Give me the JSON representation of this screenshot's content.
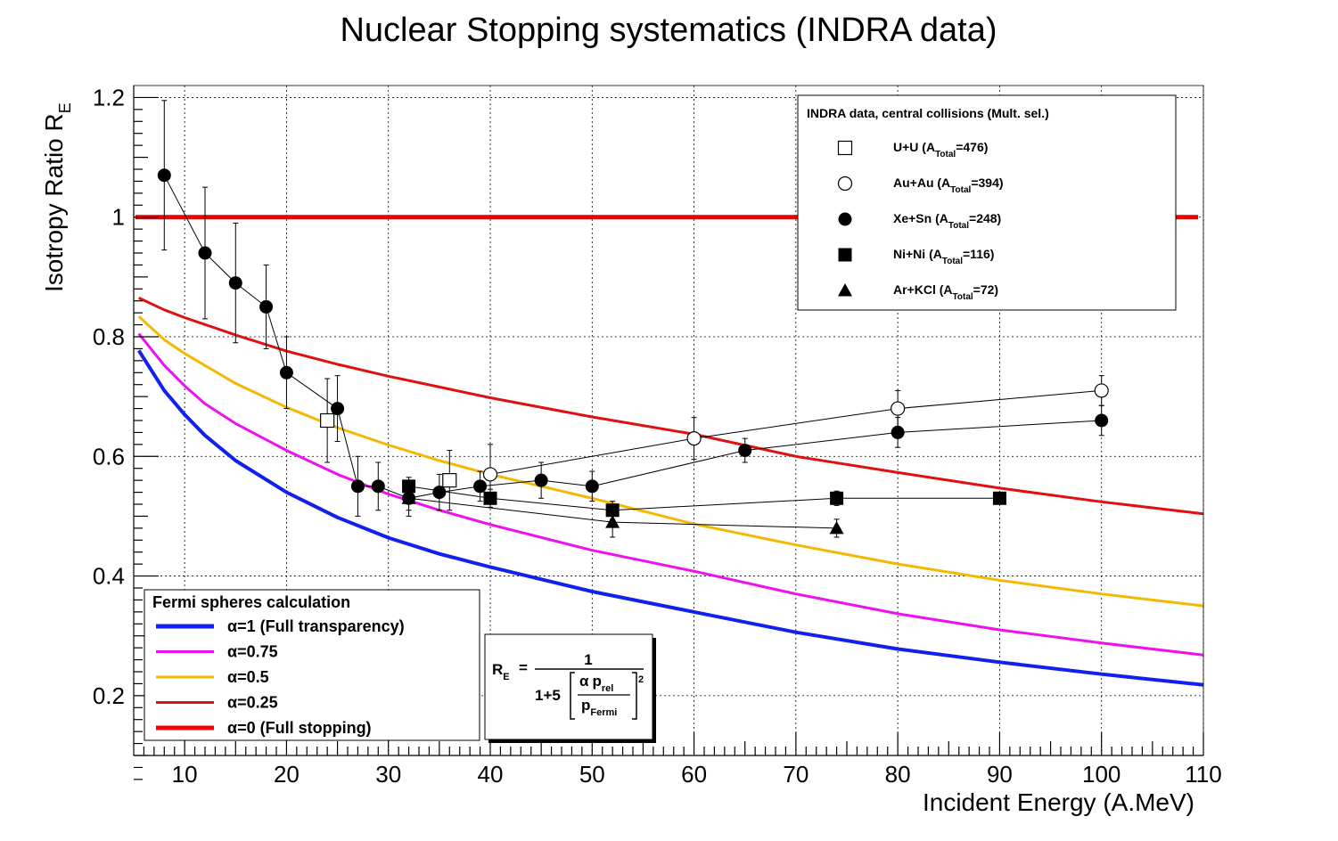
{
  "chart_data": {
    "type": "scatter",
    "title": "Nuclear Stopping systematics (INDRA data)",
    "xlabel": "Incident Energy (A.MeV)",
    "ylabel": "Isotropy Ratio R",
    "ylabel_sub": "E",
    "xlim": [
      5,
      110
    ],
    "ylim": [
      0.1,
      1.22
    ],
    "xticks": [
      10,
      20,
      30,
      40,
      50,
      60,
      70,
      80,
      90,
      100,
      110
    ],
    "xtick_labels": [
      "10",
      "20",
      "30",
      "40",
      "50",
      "60",
      "70",
      "80",
      "90",
      "100",
      "110"
    ],
    "yticks": [
      0.2,
      0.4,
      0.6,
      0.8,
      1,
      1.2
    ],
    "ytick_labels": [
      "0.2",
      "0.4",
      "0.6",
      "0.8",
      "1",
      "1.2"
    ],
    "grid": true,
    "data_legend": {
      "title": "INDRA data, central collisions (Mult. sel.)",
      "position": "top-right",
      "sub_total": "Total",
      "entries": [
        {
          "prefix": "U+U (A",
          "suffix": "=476)",
          "marker": "open-square"
        },
        {
          "prefix": "Au+Au (A",
          "suffix": "=394)",
          "marker": "open-circle"
        },
        {
          "prefix": "Xe+Sn (A",
          "suffix": "=248)",
          "marker": "filled-circle"
        },
        {
          "prefix": "Ni+Ni (A",
          "suffix": "=116)",
          "marker": "filled-square"
        },
        {
          "prefix": "Ar+KCl (A",
          "suffix": "=72)",
          "marker": "filled-triangle"
        }
      ]
    },
    "model_legend": {
      "title": "Fermi spheres calculation",
      "position": "bottom-left",
      "entries": [
        {
          "label": "α=1 (Full transparency)",
          "color": "#1020ee"
        },
        {
          "label": "α=0.75",
          "color": "#ee10ee"
        },
        {
          "label": "α=0.5",
          "color": "#f5b800"
        },
        {
          "label": "α=0.25",
          "color": "#e01010"
        },
        {
          "label": "α=0 (Full stopping)",
          "color": "#ee0000"
        }
      ]
    },
    "formula": {
      "lhs": "R",
      "lhs_sub": "E",
      "equals": "=",
      "numerator": "1",
      "denom_prefix": "1+5",
      "alpha": "α",
      "p_rel": "p",
      "p_rel_sub": "rel",
      "p_fermi": "p",
      "p_fermi_sub": "Fermi",
      "exponent": "2"
    },
    "full_stopping_line": {
      "y": 1.0,
      "x_range": [
        5,
        110
      ]
    },
    "model_curves": [
      {
        "alpha": 1,
        "color": "#1020ee",
        "width": 4,
        "x": [
          5.5,
          8,
          10,
          12,
          15,
          20,
          25,
          30,
          35,
          40,
          50,
          60,
          70,
          80,
          90,
          100,
          110
        ],
        "y": [
          0.777,
          0.71,
          0.67,
          0.635,
          0.593,
          0.54,
          0.498,
          0.464,
          0.437,
          0.415,
          0.374,
          0.34,
          0.306,
          0.278,
          0.256,
          0.236,
          0.218
        ]
      },
      {
        "alpha": 0.75,
        "color": "#ee10ee",
        "width": 3,
        "x": [
          5.5,
          8,
          10,
          12,
          15,
          20,
          25,
          30,
          35,
          40,
          50,
          60,
          70,
          80,
          90,
          100,
          110
        ],
        "y": [
          0.805,
          0.752,
          0.718,
          0.688,
          0.655,
          0.61,
          0.57,
          0.537,
          0.51,
          0.486,
          0.443,
          0.408,
          0.37,
          0.337,
          0.31,
          0.288,
          0.268
        ]
      },
      {
        "alpha": 0.5,
        "color": "#f5b800",
        "width": 3,
        "x": [
          5.5,
          8,
          10,
          15,
          20,
          25,
          30,
          35,
          40,
          50,
          60,
          70,
          80,
          90,
          100,
          110
        ],
        "y": [
          0.834,
          0.795,
          0.772,
          0.722,
          0.682,
          0.648,
          0.619,
          0.593,
          0.57,
          0.53,
          0.487,
          0.452,
          0.42,
          0.393,
          0.37,
          0.35
        ]
      },
      {
        "alpha": 0.25,
        "color": "#e01010",
        "width": 3,
        "x": [
          5.5,
          8,
          10,
          15,
          20,
          25,
          30,
          35,
          40,
          50,
          60,
          70,
          80,
          90,
          100,
          110
        ],
        "y": [
          0.865,
          0.845,
          0.832,
          0.803,
          0.776,
          0.754,
          0.734,
          0.716,
          0.698,
          0.666,
          0.637,
          0.6,
          0.573,
          0.547,
          0.524,
          0.504
        ]
      }
    ],
    "series": [
      {
        "name": "U+U",
        "marker": "open-square",
        "points": [
          [
            24,
            0.66,
            0.07
          ],
          [
            36,
            0.56,
            0.05
          ]
        ]
      },
      {
        "name": "Au+Au",
        "marker": "open-circle",
        "connected": true,
        "points": [
          [
            40,
            0.57,
            0.05
          ],
          [
            60,
            0.63,
            0.035
          ],
          [
            80,
            0.68,
            0.03
          ],
          [
            100,
            0.71,
            0.025
          ]
        ]
      },
      {
        "name": "Xe+Sn",
        "marker": "filled-circle",
        "connected": true,
        "points": [
          [
            8,
            1.07,
            0.125
          ],
          [
            12,
            0.94,
            0.11
          ],
          [
            15,
            0.89,
            0.1
          ],
          [
            18,
            0.85,
            0.07
          ],
          [
            20,
            0.74,
            0.06
          ],
          [
            25,
            0.68,
            0.055
          ],
          [
            27,
            0.55,
            0.05
          ],
          [
            29,
            0.55,
            0.04
          ],
          [
            32,
            0.53,
            0.03
          ],
          [
            35,
            0.54,
            0.03
          ],
          [
            39,
            0.55,
            0.025
          ],
          [
            45,
            0.56,
            0.03
          ],
          [
            50,
            0.55,
            0.025
          ],
          [
            65,
            0.61,
            0.02
          ],
          [
            80,
            0.64,
            0.025
          ],
          [
            100,
            0.66,
            0.025
          ]
        ]
      },
      {
        "name": "Ni+Ni",
        "marker": "filled-square",
        "connected": true,
        "points": [
          [
            32,
            0.55,
            0.015
          ],
          [
            40,
            0.53,
            0.015
          ],
          [
            52,
            0.51,
            0.015
          ],
          [
            74,
            0.53,
            0.012
          ],
          [
            90,
            0.53,
            0.01
          ]
        ]
      },
      {
        "name": "Ar+KCl",
        "marker": "filled-triangle",
        "connected": true,
        "points": [
          [
            32,
            0.53,
            0.02
          ],
          [
            52,
            0.49,
            0.025
          ],
          [
            74,
            0.48,
            0.015
          ]
        ]
      }
    ]
  }
}
